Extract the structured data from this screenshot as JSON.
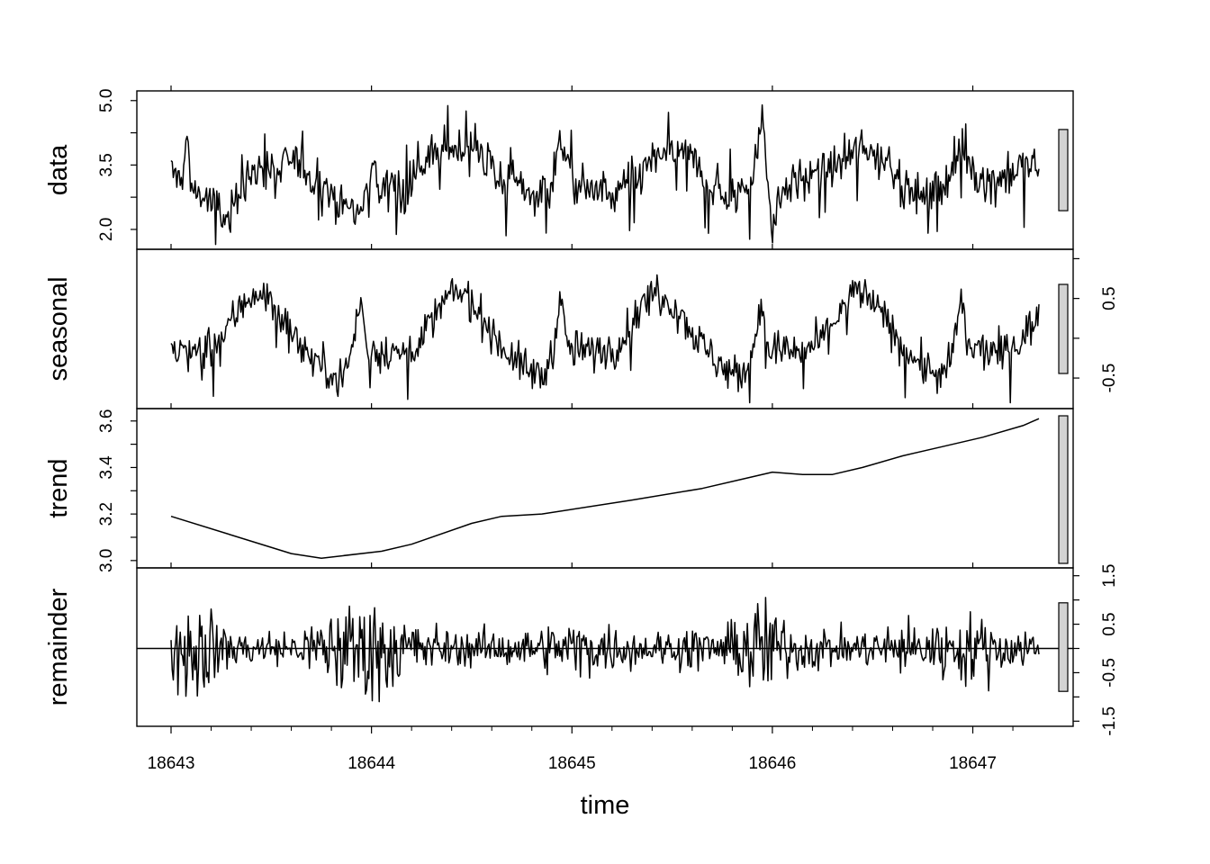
{
  "chart_data": {
    "type": "line",
    "title": "",
    "xlabel": "time",
    "x_range": [
      18643,
      18647.33
    ],
    "x_ticks": [
      "18643",
      "18644",
      "18645",
      "18646",
      "18647"
    ],
    "colors": {
      "line": "#000000",
      "range_bar": "#d3d3d3"
    },
    "panels": [
      {
        "name": "data",
        "ylim": [
          1.6,
          5.1
        ],
        "y_ticks": [
          "2.0",
          "3.5",
          "5.0"
        ],
        "y_tick_values": [
          2.0,
          3.5,
          5.0
        ],
        "y_axis_side": "left",
        "anchors": [
          [
            18643.0,
            3.35
          ],
          [
            18643.05,
            3.1
          ],
          [
            18643.08,
            4.1
          ],
          [
            18643.1,
            3.0
          ],
          [
            18643.2,
            2.6
          ],
          [
            18643.28,
            2.2
          ],
          [
            18643.35,
            3.0
          ],
          [
            18643.45,
            3.5
          ],
          [
            18643.55,
            3.3
          ],
          [
            18643.6,
            3.7
          ],
          [
            18643.7,
            3.2
          ],
          [
            18643.78,
            3.0
          ],
          [
            18643.85,
            2.6
          ],
          [
            18643.95,
            2.4
          ],
          [
            18644.0,
            3.6
          ],
          [
            18644.05,
            2.8
          ],
          [
            18644.1,
            3.3
          ],
          [
            18644.15,
            2.7
          ],
          [
            18644.25,
            3.6
          ],
          [
            18644.4,
            3.9
          ],
          [
            18644.5,
            3.9
          ],
          [
            18644.55,
            3.7
          ],
          [
            18644.62,
            3.3
          ],
          [
            18644.7,
            3.1
          ],
          [
            18644.8,
            2.8
          ],
          [
            18644.9,
            3.1
          ],
          [
            18644.95,
            4.2
          ],
          [
            18645.0,
            3.1
          ],
          [
            18645.1,
            2.9
          ],
          [
            18645.2,
            2.8
          ],
          [
            18645.3,
            3.1
          ],
          [
            18645.4,
            3.6
          ],
          [
            18645.5,
            3.8
          ],
          [
            18645.55,
            3.8
          ],
          [
            18645.6,
            3.6
          ],
          [
            18645.7,
            3.0
          ],
          [
            18645.8,
            2.7
          ],
          [
            18645.9,
            3.2
          ],
          [
            18645.95,
            4.6
          ],
          [
            18646.0,
            2.1
          ],
          [
            18646.05,
            3.0
          ],
          [
            18646.15,
            3.2
          ],
          [
            18646.25,
            3.3
          ],
          [
            18646.35,
            3.6
          ],
          [
            18646.45,
            3.85
          ],
          [
            18646.55,
            3.7
          ],
          [
            18646.65,
            3.1
          ],
          [
            18646.75,
            2.7
          ],
          [
            18646.85,
            3.1
          ],
          [
            18646.95,
            3.8
          ],
          [
            18647.0,
            3.3
          ],
          [
            18647.05,
            3.1
          ],
          [
            18647.15,
            3.2
          ],
          [
            18647.25,
            3.4
          ],
          [
            18647.33,
            3.45
          ]
        ],
        "noise": 0.55,
        "range_bar_height": 0.55
      },
      {
        "name": "seasonal",
        "ylim": [
          -0.85,
          1.05
        ],
        "y_ticks": [
          "0.5",
          "-0.5"
        ],
        "y_tick_values": [
          0.5,
          -0.5
        ],
        "y_axis_side": "right",
        "season_anchors": [
          [
            0.0,
            -0.15
          ],
          [
            0.05,
            -0.15
          ],
          [
            0.15,
            -0.2
          ],
          [
            0.25,
            0.0
          ],
          [
            0.35,
            0.4
          ],
          [
            0.42,
            0.6
          ],
          [
            0.5,
            0.45
          ],
          [
            0.57,
            0.2
          ],
          [
            0.65,
            -0.1
          ],
          [
            0.75,
            -0.35
          ],
          [
            0.85,
            -0.5
          ],
          [
            0.9,
            -0.2
          ],
          [
            0.93,
            0.3
          ],
          [
            0.95,
            0.5
          ],
          [
            0.97,
            -0.1
          ],
          [
            1.0,
            -0.15
          ]
        ],
        "noise": 0.35,
        "range_bar_height": 0.6
      },
      {
        "name": "trend",
        "ylim": [
          2.98,
          3.63
        ],
        "y_ticks": [
          "3.0",
          "3.2",
          "3.4",
          "3.6"
        ],
        "y_tick_values": [
          3.0,
          3.2,
          3.4,
          3.6
        ],
        "y_axis_side": "left",
        "x": [
          18643.0,
          18643.6,
          18643.75,
          18644.05,
          18644.2,
          18644.5,
          18644.65,
          18644.85,
          18645.3,
          18645.65,
          18645.85,
          18646.0,
          18646.15,
          18646.3,
          18646.45,
          18646.65,
          18646.85,
          18647.05,
          18647.25,
          18647.33
        ],
        "y": [
          3.19,
          3.03,
          3.01,
          3.04,
          3.07,
          3.16,
          3.19,
          3.2,
          3.26,
          3.31,
          3.35,
          3.38,
          3.37,
          3.37,
          3.4,
          3.45,
          3.49,
          3.53,
          3.58,
          3.61
        ],
        "range_bar_height": 0.6
      },
      {
        "name": "remainder",
        "ylim": [
          -1.55,
          1.55
        ],
        "y_ticks": [
          "1.5",
          "0.5",
          "-0.5",
          "-1.5"
        ],
        "y_tick_values": [
          1.5,
          0.5,
          -0.5,
          -1.5
        ],
        "y_axis_side": "right",
        "zero_line": true,
        "amplitude_anchors": [
          [
            18643.0,
            0.6
          ],
          [
            18643.1,
            1.3
          ],
          [
            18643.25,
            0.5
          ],
          [
            18643.5,
            0.35
          ],
          [
            18643.7,
            0.5
          ],
          [
            18643.85,
            1.0
          ],
          [
            18644.0,
            1.2
          ],
          [
            18644.15,
            0.7
          ],
          [
            18644.4,
            0.35
          ],
          [
            18644.8,
            0.4
          ],
          [
            18645.0,
            0.6
          ],
          [
            18645.4,
            0.35
          ],
          [
            18645.8,
            0.5
          ],
          [
            18645.95,
            1.2
          ],
          [
            18646.1,
            0.5
          ],
          [
            18646.4,
            0.35
          ],
          [
            18646.6,
            0.5
          ],
          [
            18646.8,
            0.6
          ],
          [
            18647.0,
            0.7
          ],
          [
            18647.33,
            0.4
          ]
        ],
        "range_bar_height": 0.6
      }
    ]
  }
}
